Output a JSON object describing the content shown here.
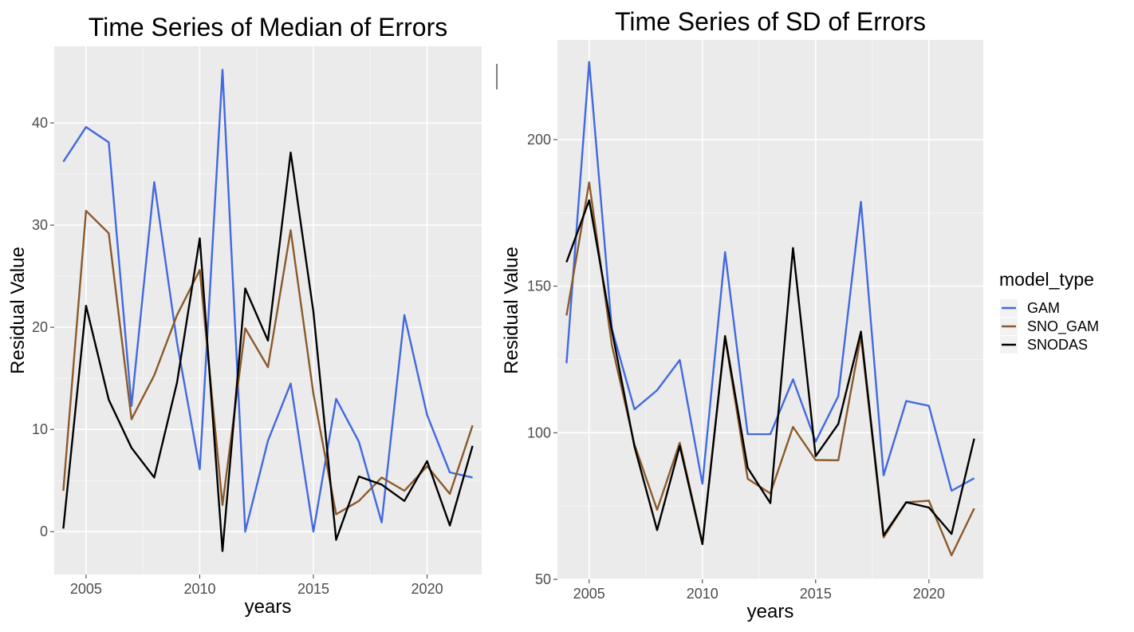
{
  "chart_data": [
    {
      "type": "line",
      "title": "Time Series of Median of Errors",
      "xlabel": "years",
      "ylabel": "Residual Value",
      "xlim": [
        2003.6,
        2022.4
      ],
      "ylim": [
        -4.2,
        47.5
      ],
      "x_ticks": [
        2005,
        2010,
        2015,
        2020
      ],
      "y_ticks": [
        0,
        10,
        20,
        30,
        40
      ],
      "grid": true,
      "x": [
        2004,
        2005,
        2006,
        2007,
        2008,
        2009,
        2010,
        2011,
        2012,
        2013,
        2014,
        2015,
        2016,
        2017,
        2018,
        2019,
        2020,
        2021,
        2022
      ],
      "series": [
        {
          "name": "GAM",
          "color": "#4169E1",
          "values": [
            36.2,
            39.6,
            38.1,
            12.3,
            34.2,
            18.5,
            6.1,
            45.2,
            0.0,
            8.9,
            14.5,
            0.0,
            13.0,
            8.8,
            0.9,
            21.2,
            11.4,
            5.8,
            5.3
          ]
        },
        {
          "name": "SNO_GAM",
          "color": "#8B5A2B",
          "values": [
            4.0,
            31.4,
            29.2,
            11.0,
            15.3,
            21.2,
            25.6,
            2.6,
            19.9,
            16.1,
            29.5,
            13.5,
            1.7,
            3.0,
            5.3,
            4.0,
            6.4,
            3.7,
            10.4
          ]
        },
        {
          "name": "SNODAS",
          "color": "#000000",
          "values": [
            0.3,
            22.1,
            12.9,
            8.2,
            5.3,
            14.6,
            28.7,
            -1.9,
            23.8,
            18.7,
            37.1,
            21.5,
            -0.8,
            5.4,
            4.6,
            3.0,
            6.9,
            0.6,
            8.4
          ]
        }
      ]
    },
    {
      "type": "line",
      "title": "Time Series of SD of Errors",
      "xlabel": "years",
      "ylabel": "Residual Value",
      "xlim": [
        2003.6,
        2022.4
      ],
      "ylim": [
        50,
        234
      ],
      "x_ticks": [
        2005,
        2010,
        2015,
        2020
      ],
      "y_ticks": [
        50,
        100,
        150,
        200
      ],
      "grid": true,
      "x": [
        2004,
        2005,
        2006,
        2007,
        2008,
        2009,
        2010,
        2011,
        2012,
        2013,
        2014,
        2015,
        2016,
        2017,
        2018,
        2019,
        2020,
        2021,
        2022
      ],
      "series": [
        {
          "name": "GAM",
          "color": "#4169E1",
          "values": [
            123.7,
            226.5,
            135.5,
            108.0,
            114.5,
            124.8,
            82.6,
            161.6,
            99.5,
            99.5,
            118.2,
            97.0,
            112.5,
            178.8,
            85.5,
            110.8,
            109.2,
            80.2,
            84.5
          ]
        },
        {
          "name": "SNO_GAM",
          "color": "#8B5A2B",
          "values": [
            140.0,
            185.4,
            130.0,
            96.0,
            73.7,
            96.6,
            62.3,
            132.5,
            84.3,
            79.3,
            102.0,
            90.7,
            90.6,
            133.0,
            64.3,
            76.3,
            76.8,
            58.2,
            74.2
          ]
        },
        {
          "name": "SNODAS",
          "color": "#000000",
          "values": [
            158.2,
            179.3,
            135.0,
            95.3,
            66.8,
            95.5,
            62.0,
            133.0,
            88.0,
            76.0,
            163.0,
            92.0,
            103.0,
            134.5,
            65.0,
            76.3,
            74.5,
            65.5,
            98.0
          ]
        }
      ]
    }
  ],
  "legend": {
    "title": "model_type",
    "position": "right",
    "items": [
      {
        "label": "GAM",
        "color": "#4169E1"
      },
      {
        "label": "SNO_GAM",
        "color": "#8B5A2B"
      },
      {
        "label": "SNODAS",
        "color": "#000000"
      }
    ]
  }
}
